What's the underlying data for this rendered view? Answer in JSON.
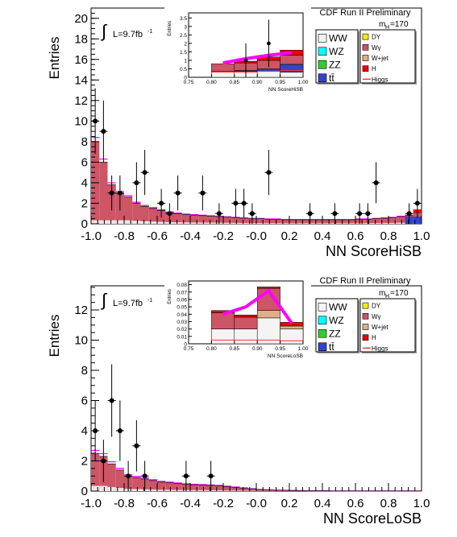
{
  "colors": {
    "ww": "#f4f4f4",
    "wz": "#00ffff",
    "zz": "#33cc33",
    "tt": "#3344cc",
    "dy": "#ffee00",
    "wgamma": "#cc5566",
    "wjet": "#ddb088",
    "h": "#ee0000",
    "higgs_line": "#ff3333",
    "signal_band": "#ff00ff"
  },
  "panels": [
    {
      "header": "CDF Run II Preliminary",
      "mass_label": "m",
      "mass_sub": "H",
      "mass_value": "=170",
      "lumi_label": "L=9.7fb",
      "lumi_sup": "-1",
      "legend": {
        "left": [
          {
            "key": "ww",
            "label": "WW"
          },
          {
            "key": "wz",
            "label": "WZ"
          },
          {
            "key": "zz",
            "label": "ZZ"
          },
          {
            "key": "tt",
            "label": "tt̄"
          }
        ],
        "right": [
          {
            "key": "dy",
            "label": "DY"
          },
          {
            "key": "wgamma",
            "label": "Wγ"
          },
          {
            "key": "wjet",
            "label": "W+jet"
          },
          {
            "key": "h",
            "label": "H"
          },
          {
            "key": "higgs_line",
            "label": "Higgs"
          }
        ]
      },
      "chart_data": {
        "type": "bar",
        "ylabel": "Entries",
        "xlabel": "NN ScoreHiSB",
        "xlim": [
          -1.0,
          1.0
        ],
        "ylim": [
          0,
          21
        ],
        "x_ticks": [
          "-1.0",
          "-0.8",
          "-0.6",
          "-0.4",
          "-0.2",
          "-0.0",
          "0.2",
          "0.4",
          "0.6",
          "0.8",
          "1.0"
        ],
        "y_ticks": [
          "0",
          "2",
          "4",
          "6",
          "8",
          "10",
          "12",
          "14",
          "16",
          "18",
          "20"
        ],
        "bin_width": 0.05,
        "background_total": [
          8.0,
          6.0,
          3.8,
          3.0,
          2.6,
          2.0,
          1.7,
          1.5,
          1.3,
          1.1,
          1.0,
          0.9,
          0.85,
          0.8,
          0.75,
          0.7,
          0.65,
          0.6,
          0.55,
          0.5,
          0.5,
          0.45,
          0.45,
          0.4,
          0.4,
          0.4,
          0.4,
          0.4,
          0.4,
          0.4,
          0.4,
          0.4,
          0.45,
          0.45,
          0.5,
          0.55,
          0.6,
          0.7,
          0.8,
          1.1
        ],
        "data_points": [
          {
            "x": -0.975,
            "y": 10,
            "err": 3.2
          },
          {
            "x": -0.925,
            "y": 9,
            "err": 3.0
          },
          {
            "x": -0.875,
            "y": 3,
            "err": 1.7
          },
          {
            "x": -0.825,
            "y": 3,
            "err": 1.7
          },
          {
            "x": -0.725,
            "y": 4,
            "err": 2.0
          },
          {
            "x": -0.675,
            "y": 5,
            "err": 2.2
          },
          {
            "x": -0.575,
            "y": 2,
            "err": 1.4
          },
          {
            "x": -0.525,
            "y": 1,
            "err": 1.0
          },
          {
            "x": -0.475,
            "y": 3,
            "err": 1.7
          },
          {
            "x": -0.325,
            "y": 3,
            "err": 1.7
          },
          {
            "x": -0.225,
            "y": 1,
            "err": 1.0
          },
          {
            "x": -0.125,
            "y": 2,
            "err": 1.4
          },
          {
            "x": -0.075,
            "y": 2,
            "err": 1.4
          },
          {
            "x": -0.025,
            "y": 1,
            "err": 1.0
          },
          {
            "x": 0.075,
            "y": 5,
            "err": 2.2
          },
          {
            "x": 0.325,
            "y": 1,
            "err": 1.0
          },
          {
            "x": 0.475,
            "y": 1,
            "err": 1.0
          },
          {
            "x": 0.625,
            "y": 1,
            "err": 1.0
          },
          {
            "x": 0.675,
            "y": 1,
            "err": 1.0
          },
          {
            "x": 0.725,
            "y": 4,
            "err": 2.0
          },
          {
            "x": 0.925,
            "y": 1,
            "err": 1.0
          },
          {
            "x": 0.975,
            "y": 2,
            "err": 1.4
          }
        ],
        "inset": {
          "xlabel": "NN ScoreHiSB",
          "ylabel": "Entries",
          "xlim": [
            0.75,
            1.0
          ],
          "ylim": [
            0,
            3.8
          ],
          "x_ticks": [
            "0.75",
            "0.80",
            "0.85",
            "0.90",
            "0.95",
            "1.00"
          ],
          "y_ticks": [
            "0",
            "0.5",
            "1",
            "1.5",
            "2",
            "2.5",
            "3",
            "3.5"
          ],
          "bins": [
            {
              "lo": 0.8,
              "hi": 0.85,
              "ww": 0.35,
              "tt": 0.0,
              "wgamma": 0.45,
              "wjet": 0.0,
              "h": 0.0
            },
            {
              "lo": 0.85,
              "hi": 0.9,
              "ww": 0.35,
              "tt": 0.05,
              "wgamma": 0.45,
              "wjet": 0.0,
              "h": 0.1
            },
            {
              "lo": 0.9,
              "hi": 0.95,
              "ww": 0.35,
              "tt": 0.1,
              "wgamma": 0.5,
              "wjet": 0.05,
              "h": 0.2
            },
            {
              "lo": 0.95,
              "hi": 1.0,
              "ww": 0.3,
              "tt": 0.45,
              "wgamma": 0.5,
              "wjet": 0.05,
              "h": 0.3
            }
          ],
          "higgs_line": [
            0.3,
            0.3,
            0.35,
            0.4
          ],
          "signal_band": [
            [
              0.825,
              0.85
            ],
            [
              0.875,
              1.1
            ],
            [
              0.925,
              1.3
            ],
            [
              0.975,
              1.45
            ]
          ],
          "data_points": [
            {
              "x": 0.875,
              "y": 1,
              "err": 1.0
            },
            {
              "x": 0.925,
              "y": 2,
              "err": 1.4
            }
          ]
        }
      }
    },
    {
      "header": "CDF Run II Preliminary",
      "mass_label": "m",
      "mass_sub": "H",
      "mass_value": "=170",
      "lumi_label": "L=9.7fb",
      "lumi_sup": "-1",
      "legend": {
        "left": [
          {
            "key": "ww",
            "label": "WW"
          },
          {
            "key": "wz",
            "label": "WZ"
          },
          {
            "key": "zz",
            "label": "ZZ"
          },
          {
            "key": "tt",
            "label": "tt̄"
          }
        ],
        "right": [
          {
            "key": "dy",
            "label": "DY"
          },
          {
            "key": "wgamma",
            "label": "Wγ"
          },
          {
            "key": "wjet",
            "label": "W+jet"
          },
          {
            "key": "h",
            "label": "H"
          },
          {
            "key": "higgs_line",
            "label": "Higgs"
          }
        ]
      },
      "chart_data": {
        "type": "bar",
        "ylabel": "Entries",
        "xlabel": "NN ScoreLoSB",
        "xlim": [
          -1.0,
          1.0
        ],
        "ylim": [
          0,
          13.6
        ],
        "x_ticks": [
          "-1.0",
          "-0.8",
          "-0.6",
          "-0.4",
          "-0.2",
          "-0.0",
          "0.2",
          "0.4",
          "0.6",
          "0.8",
          "1.0"
        ],
        "y_ticks": [
          "0",
          "2",
          "4",
          "6",
          "8",
          "10",
          "12"
        ],
        "bin_width": 0.05,
        "background_total": [
          2.5,
          2.3,
          1.8,
          1.4,
          1.0,
          0.9,
          0.8,
          0.7,
          0.6,
          0.55,
          0.5,
          0.45,
          0.42,
          0.4,
          0.38,
          0.35,
          0.3,
          0.25,
          0.2,
          0.15,
          0.1,
          0.08,
          0.06,
          0.05,
          0.04,
          0.03,
          0.02,
          0.02,
          0.02,
          0.01,
          0.01,
          0.01,
          0.01,
          0.01,
          0.01,
          0.01,
          0.01,
          0.01,
          0.01,
          0.01
        ],
        "data_points": [
          {
            "x": -0.975,
            "y": 4,
            "err": 2.0
          },
          {
            "x": -0.925,
            "y": 2,
            "err": 1.4
          },
          {
            "x": -0.875,
            "y": 6,
            "err": 2.4
          },
          {
            "x": -0.825,
            "y": 4,
            "err": 2.0
          },
          {
            "x": -0.775,
            "y": 1,
            "err": 1.0
          },
          {
            "x": -0.725,
            "y": 3,
            "err": 1.7
          },
          {
            "x": -0.675,
            "y": 1,
            "err": 1.0
          },
          {
            "x": -0.425,
            "y": 1,
            "err": 1.0
          },
          {
            "x": -0.275,
            "y": 1,
            "err": 1.0
          }
        ],
        "inset": {
          "xlabel": "NN ScoreLoSB",
          "ylabel": "Entries",
          "xlim": [
            0.75,
            1.0
          ],
          "ylim": [
            0,
            0.085
          ],
          "x_ticks": [
            "0.75",
            "0.80",
            "0.85",
            "0.90",
            "0.95",
            "1.00"
          ],
          "y_ticks": [
            "0",
            "0.01",
            "0.02",
            "0.03",
            "0.04",
            "0.05",
            "0.06",
            "0.07",
            "0.08"
          ],
          "bins": [
            {
              "lo": 0.8,
              "hi": 0.85,
              "ww": 0.02,
              "tt": 0.0,
              "wgamma": 0.022,
              "wjet": 0.0,
              "h": 0.003
            },
            {
              "lo": 0.85,
              "hi": 0.9,
              "ww": 0.02,
              "tt": 0.0,
              "wgamma": 0.016,
              "wjet": 0.0,
              "h": 0.003
            },
            {
              "lo": 0.9,
              "hi": 0.95,
              "ww": 0.035,
              "tt": 0.0,
              "wgamma": 0.03,
              "wjet": 0.01,
              "h": 0.002
            },
            {
              "lo": 0.95,
              "hi": 1.0,
              "ww": 0.02,
              "tt": 0.0,
              "wgamma": 0.0,
              "wjet": 0.004,
              "h": 0.005
            }
          ],
          "higgs_line": [
            0.005,
            0.005,
            0.005,
            0.004
          ],
          "signal_band": [
            [
              0.825,
              0.04
            ],
            [
              0.875,
              0.05
            ],
            [
              0.925,
              0.072
            ],
            [
              0.975,
              0.028
            ]
          ],
          "data_points": []
        }
      }
    }
  ]
}
